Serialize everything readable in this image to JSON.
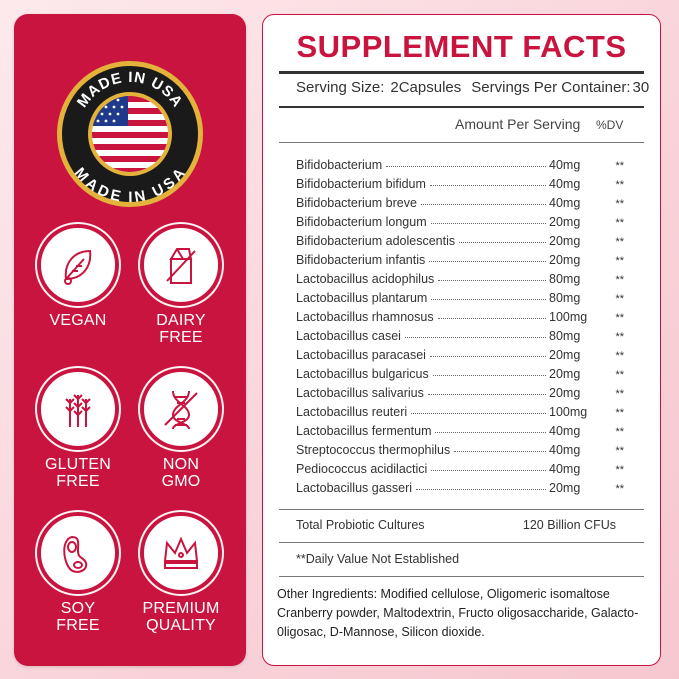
{
  "seal": {
    "top_text": "MADE IN USA",
    "bottom_text": "MADE IN USA"
  },
  "badges": [
    {
      "label": "VEGAN",
      "icon": "leaf-icon"
    },
    {
      "label": "DAIRY\nFREE",
      "icon": "milk-carton-icon"
    },
    {
      "label": "GLUTEN\nFREE",
      "icon": "wheat-icon"
    },
    {
      "label": "NON\nGMO",
      "icon": "dna-icon"
    },
    {
      "label": "SOY\nFREE",
      "icon": "soybean-icon"
    },
    {
      "label": "PREMIUM\nQUALITY",
      "icon": "crown-icon"
    }
  ],
  "facts": {
    "title": "SUPPLEMENT FACTS",
    "serving_size_label": "Serving Size:",
    "serving_size_value": "2Capsules",
    "servings_label": "Servings Per Container:",
    "servings_value": "30",
    "amount_header": "Amount Per Serving",
    "dv_header": "%DV",
    "rows": [
      {
        "name": "Bifidobacterium",
        "amount": "40mg",
        "dv": "**"
      },
      {
        "name": "Bifidobacterium bifidum",
        "amount": "40mg",
        "dv": "**"
      },
      {
        "name": "Bifidobacterium breve",
        "amount": "40mg",
        "dv": "**"
      },
      {
        "name": "Bifidobacterium longum",
        "amount": "20mg",
        "dv": "**"
      },
      {
        "name": "Bifidobacterium adolescentis",
        "amount": "20mg",
        "dv": "**"
      },
      {
        "name": "Bifidobacterium infantis",
        "amount": "20mg",
        "dv": "**"
      },
      {
        "name": "Lactobacillus acidophilus",
        "amount": "80mg",
        "dv": "**"
      },
      {
        "name": "Lactobacillus plantarum",
        "amount": "80mg",
        "dv": "**"
      },
      {
        "name": "Lactobacillus rhamnosus",
        "amount": "100mg",
        "dv": "**"
      },
      {
        "name": "Lactobacillus casei",
        "amount": "80mg",
        "dv": "**"
      },
      {
        "name": "Lactobacillus paracasei",
        "amount": "20mg",
        "dv": "**"
      },
      {
        "name": "Lactobacillus bulgaricus",
        "amount": "20mg",
        "dv": "**"
      },
      {
        "name": "Lactobacillus salivarius",
        "amount": "20mg",
        "dv": "**"
      },
      {
        "name": "Lactobacillus reuteri",
        "amount": "100mg",
        "dv": "**"
      },
      {
        "name": "Lactobacillus fermentum",
        "amount": "40mg",
        "dv": "**"
      },
      {
        "name": "Streptococcus thermophilus",
        "amount": "40mg",
        "dv": "**"
      },
      {
        "name": "Pediococcus acidilactici",
        "amount": "40mg",
        "dv": "**"
      },
      {
        "name": "Lactobacillus gasseri",
        "amount": "20mg",
        "dv": "**"
      }
    ],
    "total_label": "Total Probiotic Cultures",
    "total_value": "120 Billion CFUs",
    "note": "**Daily Value Not Established",
    "other_ingredients": "Other Ingredients: Modified cellulose, Oligomeric isomaltose Cranberry powder, Maltodextrin, Fructo oligosaccharide, Galacto-0ligosac, D-Mannose, Silicon dioxide."
  },
  "colors": {
    "brand_red": "#c8143e",
    "seal_gold": "#e2b23a",
    "seal_black": "#1a1a1a"
  }
}
